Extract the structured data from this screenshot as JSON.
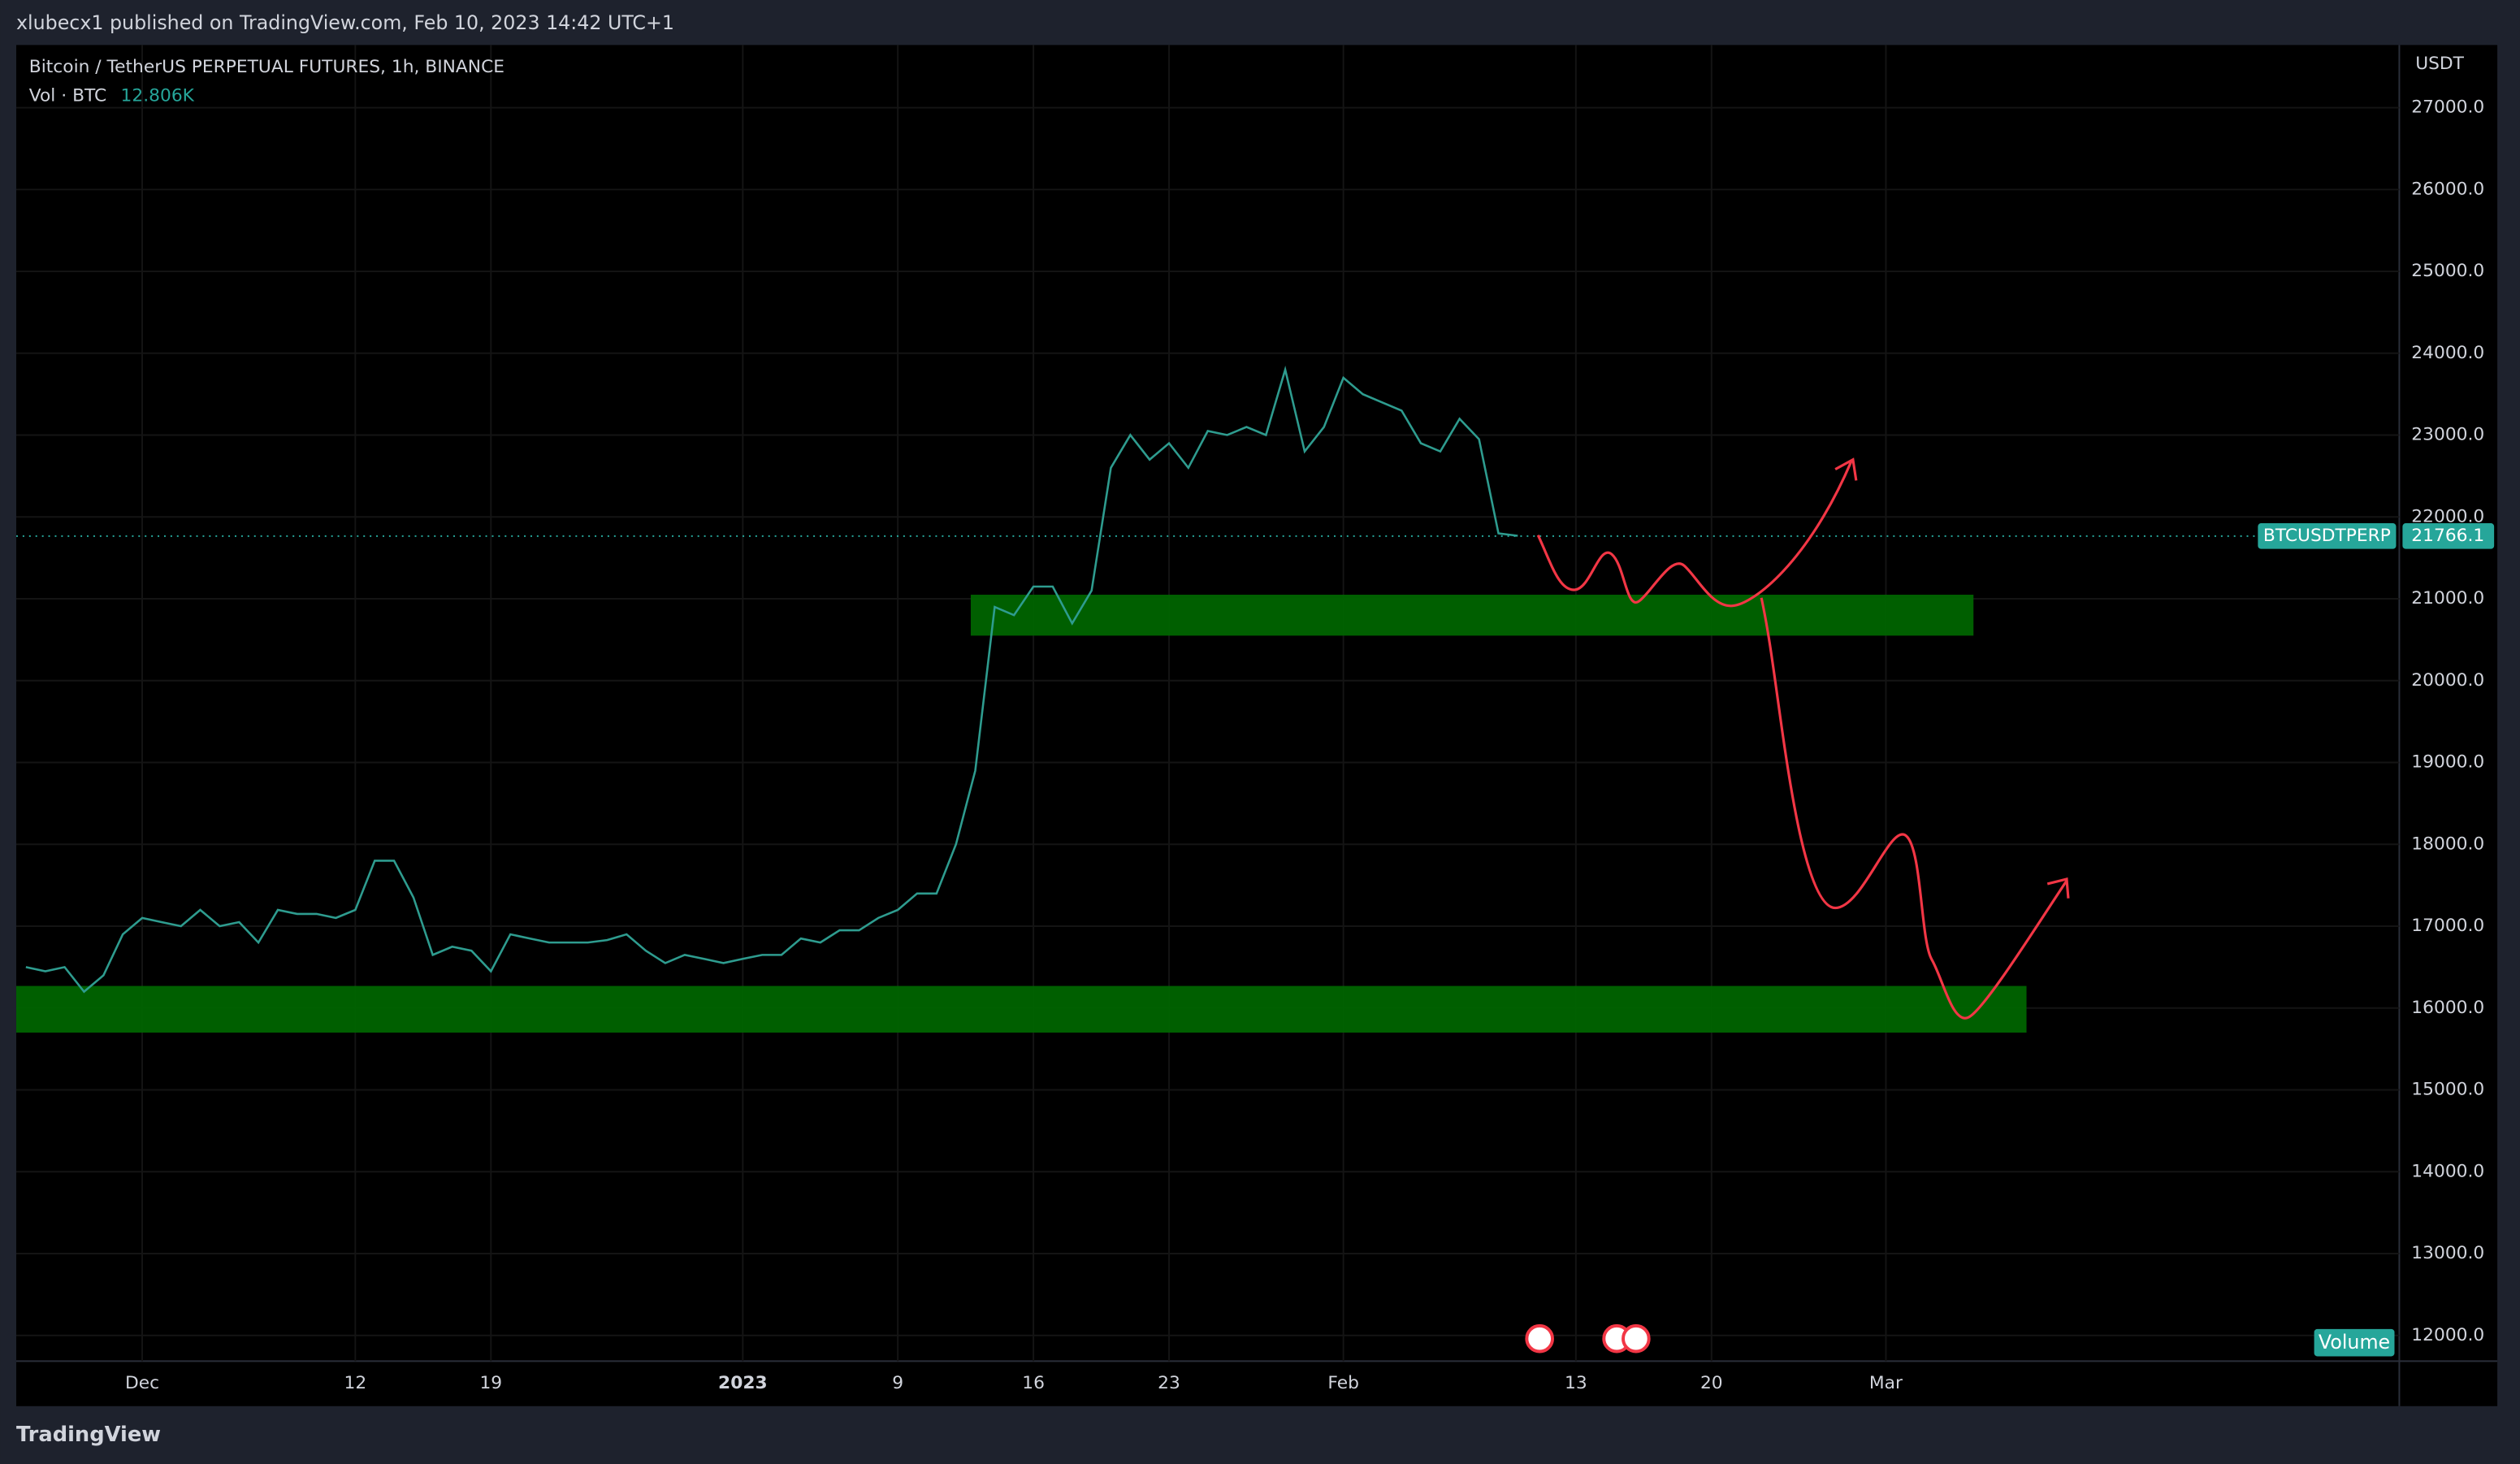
{
  "header": {
    "publisher": "xlubecx1 published on TradingView.com, Feb 10, 2023 14:42 UTC+1"
  },
  "footer": {
    "brand": "TradingView"
  },
  "chart_data": {
    "type": "line",
    "title": "Bitcoin / TetherUS PERPETUAL FUTURES, 1h, BINANCE",
    "volume_label": "Vol · BTC",
    "volume_value": "12.806K",
    "volume_tag": "Volume",
    "y_unit": "USDT",
    "symbol": "BTCUSDTPERP",
    "last_price": 21766.1,
    "categories": [
      null,
      null,
      null,
      null,
      null,
      null,
      "Dec",
      null,
      null,
      null,
      null,
      null,
      null,
      null,
      null,
      null,
      null,
      "12",
      null,
      null,
      null,
      null,
      null,
      null,
      "19",
      null,
      null,
      null,
      null,
      null,
      null,
      null,
      null,
      null,
      null,
      null,
      null,
      "2023",
      null,
      null,
      null,
      null,
      null,
      null,
      null,
      "9",
      null,
      null,
      null,
      null,
      null,
      null,
      "16",
      null,
      null,
      null,
      null,
      null,
      null,
      "23",
      null,
      null,
      null,
      null,
      null,
      null,
      null,
      null,
      "Feb",
      null,
      null,
      null,
      null,
      null,
      null,
      null,
      null,
      null,
      null,
      null,
      "13",
      null,
      null,
      null,
      null,
      null,
      null,
      "20",
      null,
      null,
      null,
      null,
      null,
      null,
      null,
      null,
      "Mar",
      null,
      null,
      null,
      null,
      null,
      null,
      null,
      null,
      null,
      null,
      null,
      null,
      null,
      null,
      null,
      null,
      null,
      null,
      null,
      null,
      null,
      null,
      null,
      null,
      null,
      null
    ],
    "series": [
      {
        "color": "#2e9c8f",
        "values": [
          16500,
          16450,
          16500,
          16200,
          16400,
          16900,
          17100,
          17050,
          17000,
          17200,
          17000,
          17050,
          16800,
          17200,
          17150,
          17150,
          17100,
          17200,
          17800,
          17800,
          17350,
          16650,
          16750,
          16700,
          16450,
          16900,
          16850,
          16800,
          16800,
          16800,
          16830,
          16900,
          16700,
          16550,
          16650,
          16600,
          16550,
          16600,
          16650,
          16650,
          16850,
          16800,
          16950,
          16950,
          17100,
          17200,
          17400,
          17400,
          18000,
          18900,
          20900,
          20800,
          21150,
          21150,
          20700,
          21100,
          22600,
          23000,
          22700,
          22900,
          22600,
          23050,
          23000,
          23100,
          23000,
          23800,
          22800,
          23100,
          23700,
          23500,
          23400,
          23300,
          22900,
          22800,
          23200,
          22950,
          21800,
          21770,
          null,
          null,
          null,
          null,
          null,
          null,
          null,
          null,
          null,
          null,
          null,
          null,
          null,
          null,
          null,
          null,
          null,
          null,
          null,
          null,
          null,
          null,
          null,
          null,
          null,
          null,
          null,
          null,
          null,
          null,
          null,
          null,
          null,
          null,
          null,
          null,
          null,
          null,
          null,
          null,
          null,
          null,
          null,
          null,
          null
        ]
      }
    ],
    "zones": [
      {
        "low": 20550,
        "high": 21050,
        "color": "#006400"
      },
      {
        "low": 15700,
        "high": 16270,
        "color": "#006400"
      }
    ],
    "ylim": [
      11686,
      27766
    ],
    "yticks": [
      {
        "value": 12000,
        "label": "12000.0"
      },
      {
        "value": 13000,
        "label": "13000.0"
      },
      {
        "value": 14000,
        "label": "14000.0"
      },
      {
        "value": 15000,
        "label": "15000.0"
      },
      {
        "value": 16000,
        "label": "16000.0"
      },
      {
        "value": 17000,
        "label": "17000.0"
      },
      {
        "value": 18000,
        "label": "18000.0"
      },
      {
        "value": 19000,
        "label": "19000.0"
      },
      {
        "value": 20000,
        "label": "20000.0"
      },
      {
        "value": 21000,
        "label": "21000.0"
      },
      {
        "value": 22000,
        "label": "22000.0"
      },
      {
        "value": 23000,
        "label": "23000.0"
      },
      {
        "value": 24000,
        "label": "24000.0"
      },
      {
        "value": 25000,
        "label": "25000.0"
      },
      {
        "value": 26000,
        "label": "26000.0"
      },
      {
        "value": 27000,
        "label": "27000.0"
      }
    ],
    "grid": true
  }
}
